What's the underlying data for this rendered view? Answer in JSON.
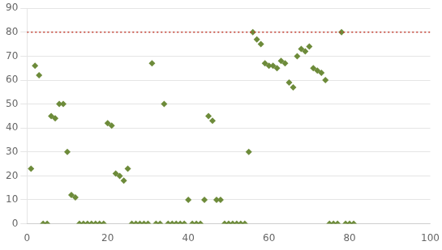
{
  "chart_data": {
    "type": "scatter",
    "x": [
      1,
      2,
      3,
      4,
      5,
      6,
      7,
      8,
      9,
      10,
      11,
      12,
      13,
      14,
      15,
      16,
      17,
      18,
      19,
      20,
      21,
      22,
      23,
      24,
      25,
      26,
      27,
      28,
      29,
      30,
      31,
      32,
      33,
      34,
      35,
      36,
      37,
      38,
      39,
      40,
      41,
      42,
      43,
      44,
      45,
      46,
      47,
      48,
      49,
      50,
      51,
      52,
      53,
      54,
      55,
      56,
      57,
      58,
      59,
      60,
      61,
      62,
      63,
      64,
      65,
      66,
      67,
      68,
      69,
      70,
      71,
      72,
      73,
      74,
      75,
      76,
      77,
      78,
      79,
      80,
      81
    ],
    "values": [
      23,
      66,
      62,
      0,
      0,
      45,
      44,
      50,
      50,
      30,
      12,
      11,
      0,
      0,
      0,
      0,
      0,
      0,
      0,
      42,
      41,
      21,
      20,
      18,
      23,
      0,
      0,
      0,
      0,
      0,
      67,
      0,
      0,
      50,
      0,
      0,
      0,
      0,
      0,
      10,
      0,
      0,
      0,
      10,
      45,
      43,
      10,
      10,
      0,
      0,
      0,
      0,
      0,
      0,
      30,
      80,
      77,
      75,
      67,
      66,
      66,
      65,
      68,
      67,
      59,
      57,
      70,
      73,
      72,
      74,
      65,
      64,
      63,
      60,
      0,
      0,
      0,
      80,
      0,
      0,
      0
    ],
    "color": "#6d8b3a",
    "marker": "diamond",
    "ref_line": {
      "value": 80,
      "color": "#c0392b",
      "line_style": "dotted"
    },
    "xlim": [
      0,
      100
    ],
    "ylim": [
      0,
      90
    ],
    "xticks": [
      0,
      20,
      40,
      60,
      80,
      100
    ],
    "yticks": [
      0,
      10,
      20,
      30,
      40,
      50,
      60,
      70,
      80,
      90
    ],
    "grid": "y"
  }
}
